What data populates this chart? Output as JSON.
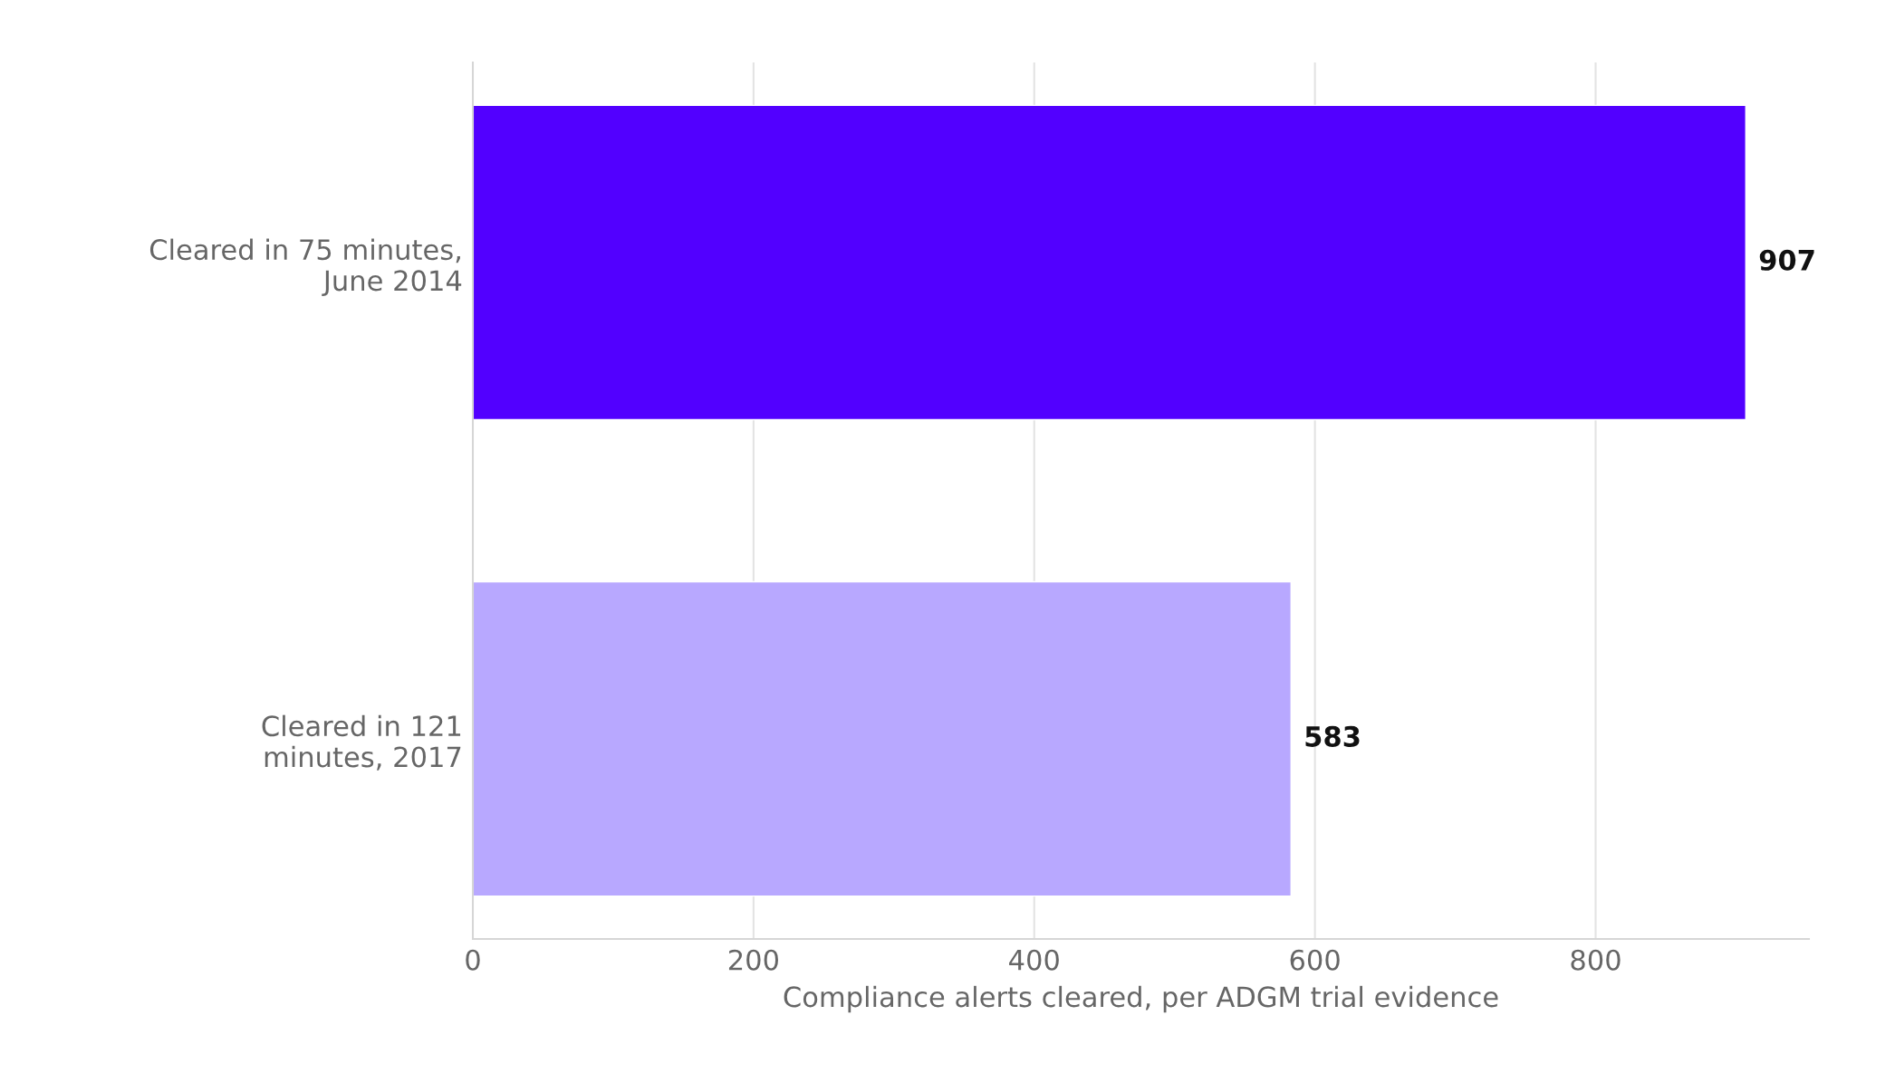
{
  "chart_data": {
    "type": "bar",
    "orientation": "horizontal",
    "categories": [
      "Cleared in 75 minutes,\nJune 2014",
      "Cleared in 121\nminutes, 2017"
    ],
    "values": [
      907,
      583
    ],
    "colors": [
      "#5200ff",
      "#b8a8ff"
    ],
    "xlabel": "Compliance alerts cleared, per ADGM trial evidence",
    "xlim": [
      0,
      952
    ],
    "xticks": [
      0,
      200,
      400,
      600,
      800
    ],
    "grid": "x",
    "data_labels": true,
    "legend": false
  }
}
